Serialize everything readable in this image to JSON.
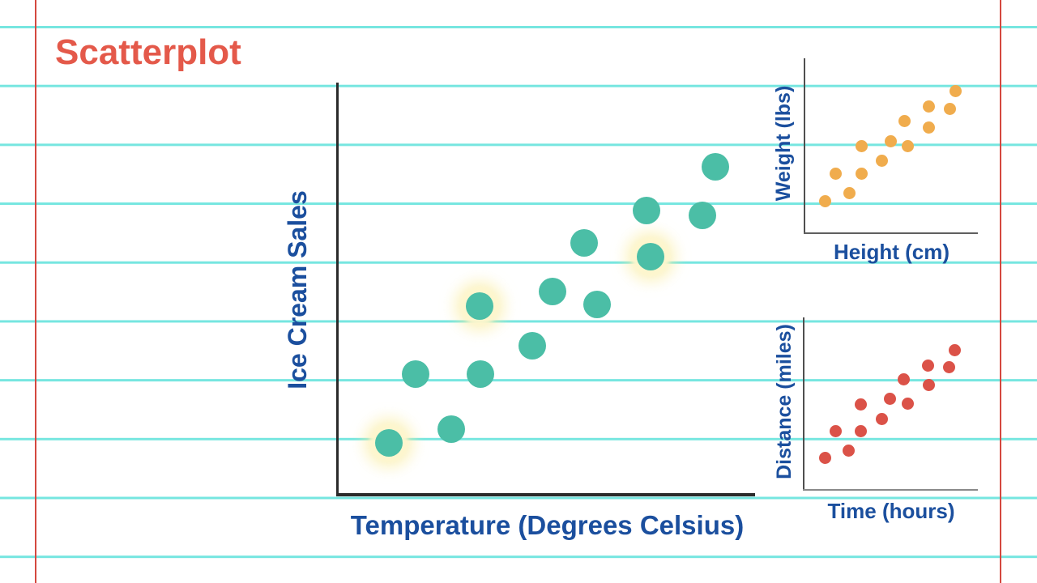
{
  "title": {
    "text": "Scatterplot",
    "color": "#E4594A"
  },
  "colors": {
    "paper_rule": "#76E6E0",
    "paper_margin": "#D4483F",
    "label_blue": "#1B4F9E",
    "main_axis": "#2b2b2b",
    "mini_axis": "#5f5f5f",
    "highlight_glow": "#FAECA0"
  },
  "chart_data": [
    {
      "id": "ice-cream-vs-temperature",
      "type": "scatter",
      "title": "",
      "xlabel": "Temperature (Degrees Celsius)",
      "ylabel": "Ice Cream Sales",
      "dot_color": "#4BBEA6",
      "axis_ticks": "none",
      "grid": "notebook-ruling-only",
      "points": [
        {
          "x": 0.121,
          "y": 0.127,
          "glow": true
        },
        {
          "x": 0.27,
          "y": 0.16
        },
        {
          "x": 0.185,
          "y": 0.293
        },
        {
          "x": 0.34,
          "y": 0.293
        },
        {
          "x": 0.338,
          "y": 0.459,
          "glow": true
        },
        {
          "x": 0.465,
          "y": 0.362
        },
        {
          "x": 0.514,
          "y": 0.495
        },
        {
          "x": 0.621,
          "y": 0.463
        },
        {
          "x": 0.589,
          "y": 0.614
        },
        {
          "x": 0.749,
          "y": 0.58,
          "glow": true
        },
        {
          "x": 0.739,
          "y": 0.693
        },
        {
          "x": 0.873,
          "y": 0.681
        },
        {
          "x": 0.905,
          "y": 0.798
        }
      ]
    },
    {
      "id": "height-vs-weight",
      "type": "scatter",
      "title": "",
      "xlabel": "Height (cm)",
      "ylabel": "Weight (lbs)",
      "dot_color": "#F0AC4D",
      "axis_ticks": "none",
      "grid": "notebook-ruling-only",
      "points": [
        {
          "x": 0.117,
          "y": 0.186
        },
        {
          "x": 0.178,
          "y": 0.344
        },
        {
          "x": 0.254,
          "y": 0.228
        },
        {
          "x": 0.324,
          "y": 0.344
        },
        {
          "x": 0.324,
          "y": 0.498
        },
        {
          "x": 0.446,
          "y": 0.414
        },
        {
          "x": 0.493,
          "y": 0.53
        },
        {
          "x": 0.573,
          "y": 0.642
        },
        {
          "x": 0.596,
          "y": 0.502
        },
        {
          "x": 0.714,
          "y": 0.726
        },
        {
          "x": 0.718,
          "y": 0.609
        },
        {
          "x": 0.836,
          "y": 0.716
        },
        {
          "x": 0.869,
          "y": 0.814
        }
      ]
    },
    {
      "id": "time-vs-distance",
      "type": "scatter",
      "title": "",
      "xlabel": "Time (hours)",
      "ylabel": "Distance (miles)",
      "dot_color": "#DB5248",
      "axis_ticks": "none",
      "grid": "notebook-ruling-only",
      "points": [
        {
          "x": 0.117,
          "y": 0.186
        },
        {
          "x": 0.178,
          "y": 0.344
        },
        {
          "x": 0.254,
          "y": 0.228
        },
        {
          "x": 0.324,
          "y": 0.344
        },
        {
          "x": 0.324,
          "y": 0.498
        },
        {
          "x": 0.446,
          "y": 0.414
        },
        {
          "x": 0.493,
          "y": 0.53
        },
        {
          "x": 0.573,
          "y": 0.642
        },
        {
          "x": 0.596,
          "y": 0.502
        },
        {
          "x": 0.714,
          "y": 0.726
        },
        {
          "x": 0.718,
          "y": 0.609
        },
        {
          "x": 0.836,
          "y": 0.716
        },
        {
          "x": 0.869,
          "y": 0.814
        }
      ]
    }
  ]
}
